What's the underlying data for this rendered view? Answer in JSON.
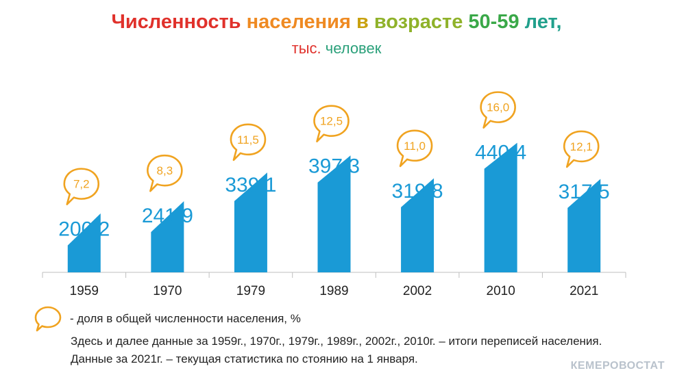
{
  "title": {
    "words": [
      {
        "text": "Численность",
        "color": "#e0312b"
      },
      {
        "text": "населения",
        "color": "#ef8a22"
      },
      {
        "text": "в",
        "color": "#c9a10f"
      },
      {
        "text": "возрасте",
        "color": "#8fb22a"
      },
      {
        "text": "50-59",
        "color": "#3aa848"
      },
      {
        "text": "лет,",
        "color": "#22a08c"
      }
    ],
    "subtitle_words": [
      {
        "text": "тыс.",
        "color": "#e0312b"
      },
      {
        "text": "человек",
        "color": "#2aa07a"
      }
    ]
  },
  "colors": {
    "bar": "#1a9ad6",
    "bubble": "#f0a320",
    "axis": "#bfbfbf",
    "value_text": "#1a9ad6"
  },
  "chart_data": {
    "type": "bar",
    "title": "Численность населения в возрасте 50-59 лет, тыс. человек",
    "categories": [
      "1959",
      "1970",
      "1979",
      "1989",
      "2002",
      "2010",
      "2021"
    ],
    "series": [
      {
        "values": [
          200.2,
          241.9,
          339.1,
          397.3,
          319.8,
          440.4,
          317.5
        ]
      },
      {
        "name": "доля в общей численности населения, %",
        "values": [
          7.2,
          8.3,
          11.5,
          12.5,
          11.0,
          16.0,
          12.1
        ]
      }
    ],
    "value_labels": [
      "200,2",
      "241,9",
      "339,1",
      "397,3",
      "319,8",
      "440,4",
      "317,5"
    ],
    "share_labels": [
      "7,2",
      "8,3",
      "11,5",
      "12,5",
      "11,0",
      "16,0",
      "12,1"
    ],
    "ylim": [
      0,
      500
    ],
    "grid": false
  },
  "legend": {
    "text": "- доля в общей численности населения, %"
  },
  "notes": [
    "Здесь и далее данные за 1959г., 1970г., 1979г., 1989г., 2002г., 2010г. – итоги переписей населения.",
    "Данные за 2021г. – текущая  статистика по стоянию на 1 января."
  ],
  "brand": "КЕМЕРОВОСТАТ"
}
